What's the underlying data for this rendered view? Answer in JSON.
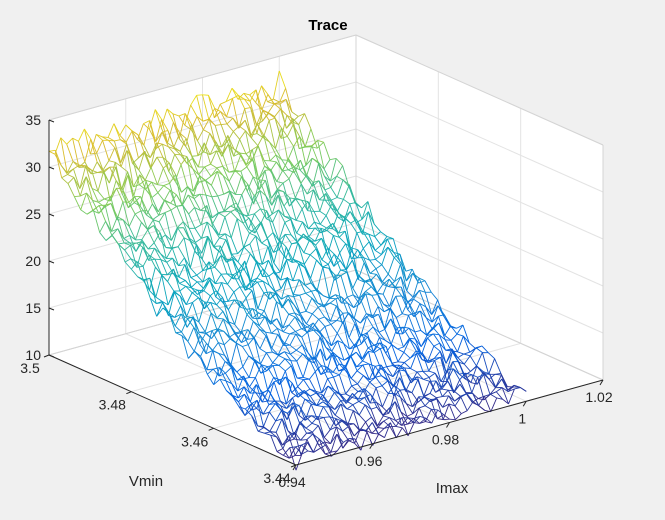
{
  "chart_data": {
    "type": "mesh3d",
    "title": "Trace",
    "xlabel": "Imax",
    "ylabel": "Vmin",
    "zlabel": "",
    "xlim": [
      0.94,
      1.02
    ],
    "ylim": [
      3.44,
      3.5
    ],
    "zlim": [
      10,
      35
    ],
    "x_ticks": [
      "0.94",
      "0.96",
      "0.98",
      "1",
      "1.02"
    ],
    "y_ticks": [
      "3.44",
      "3.46",
      "3.48",
      "3.5"
    ],
    "z_ticks": [
      "10",
      "15",
      "20",
      "25",
      "30",
      "35"
    ],
    "grid": true,
    "colormap": "parula",
    "x_range": [
      0.94,
      1.0
    ],
    "y_range": [
      3.44,
      3.5
    ],
    "grid_points_x": 40,
    "grid_points_y": 40,
    "trend": {
      "z_at_ymin": 10.5,
      "z_at_ymax": 31.5,
      "x_effect": 0.5,
      "noise_amplitude": 1.5
    }
  }
}
